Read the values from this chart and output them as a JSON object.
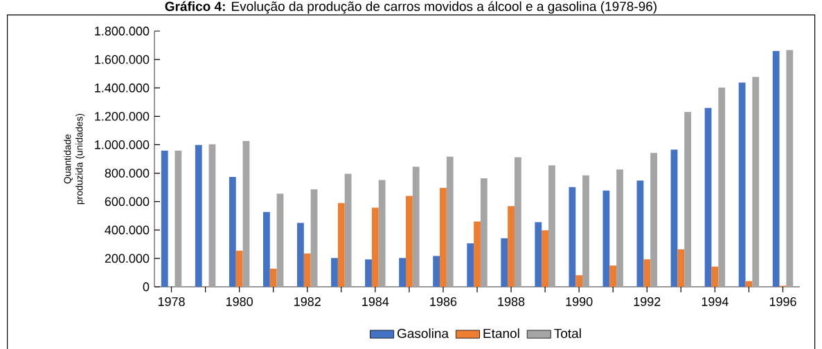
{
  "chart_data": {
    "type": "bar",
    "title": "**Gráfico 4:** Evolução da produção de carros movidos a álcool e a gasolina (1978-96)",
    "ylabel": "Quantidade produzida (unidades)",
    "categories": [
      "1978",
      null,
      "1980",
      null,
      "1982",
      null,
      "1984",
      null,
      "1986",
      null,
      "1988",
      null,
      "1990",
      null,
      "1992",
      null,
      "1994",
      null,
      "1996"
    ],
    "series": [
      {
        "name": "Gasolina",
        "color": "#4472c4",
        "values": [
          958000,
          998000,
          773000,
          527000,
          450000,
          203000,
          193000,
          203000,
          217000,
          306000,
          342000,
          455000,
          702000,
          677000,
          748000,
          966000,
          1259000,
          1437000,
          1660000
        ]
      },
      {
        "name": "Etanol",
        "color": "#ed7d31",
        "values": [
          0,
          3000,
          254000,
          128000,
          235000,
          590000,
          557000,
          640000,
          697000,
          460000,
          568000,
          398000,
          82000,
          150000,
          193000,
          264000,
          142000,
          40000,
          7000
        ]
      },
      {
        "name": "Total",
        "color": "#a5a5a5",
        "values": [
          958000,
          1003000,
          1026000,
          655000,
          686000,
          795000,
          752000,
          845000,
          916000,
          764000,
          912000,
          855000,
          784000,
          826000,
          942000,
          1231000,
          1402000,
          1478000,
          1667000
        ]
      }
    ],
    "ylim": [
      0,
      1800000
    ],
    "yticks": [
      {
        "value": 0,
        "label": "0"
      },
      {
        "value": 200000,
        "label": "200.000"
      },
      {
        "value": 400000,
        "label": "400.000"
      },
      {
        "value": 600000,
        "label": "600.000"
      },
      {
        "value": 800000,
        "label": "800.000"
      },
      {
        "value": 1000000,
        "label": "1.000.000"
      },
      {
        "value": 1200000,
        "label": "1.200.000"
      },
      {
        "value": 1400000,
        "label": "1.400.000"
      },
      {
        "value": 1600000,
        "label": "1.600.000"
      },
      {
        "value": 1800000,
        "label": "1.800.000"
      }
    ],
    "legend": "bottom",
    "grid": false
  }
}
